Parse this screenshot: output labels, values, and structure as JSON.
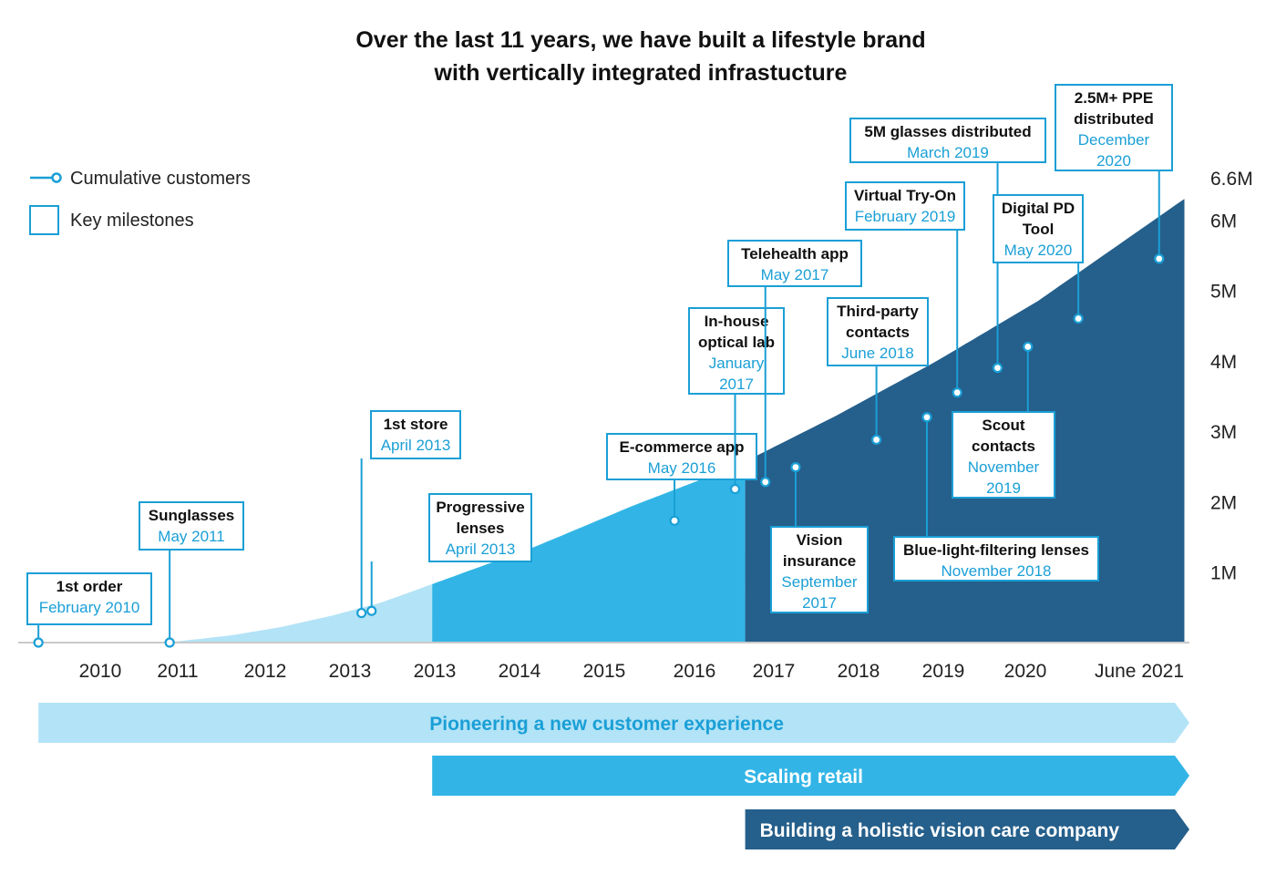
{
  "chart_data": {
    "type": "area",
    "title_lines": [
      "Over the last 11 years, we have built a lifestyle brand",
      "with vertically integrated infrastucture"
    ],
    "legend": [
      {
        "label": "Cumulative customers",
        "kind": "line-with-marker",
        "color": "#1a9fd6"
      },
      {
        "label": "Key milestones",
        "kind": "box",
        "color": "#1a9fd6"
      }
    ],
    "x_ticks": [
      "2010",
      "2011",
      "2012",
      "2013",
      "2013",
      "2014",
      "2015",
      "2016",
      "2017",
      "2018",
      "2019",
      "2020",
      "June 2021"
    ],
    "x_range": [
      2009.9,
      2021.5
    ],
    "y_ticks": [
      "1M",
      "2M",
      "3M",
      "4M",
      "5M",
      "6M",
      "6.6M"
    ],
    "y_tick_values": [
      1,
      2,
      3,
      4,
      5,
      6,
      6.6
    ],
    "y_range": [
      0,
      6.6
    ],
    "series": [
      {
        "name": "Cumulative customers",
        "points": [
          [
            2010.2,
            0
          ],
          [
            2011.1,
            0
          ],
          [
            2011.5,
            0.02
          ],
          [
            2012.0,
            0.1
          ],
          [
            2012.5,
            0.22
          ],
          [
            2013.0,
            0.38
          ],
          [
            2013.5,
            0.57
          ],
          [
            2014.0,
            0.83
          ],
          [
            2015.0,
            1.35
          ],
          [
            2016.0,
            1.95
          ],
          [
            2017.0,
            2.5
          ],
          [
            2018.0,
            3.22
          ],
          [
            2019.0,
            4.0
          ],
          [
            2020.0,
            4.85
          ],
          [
            2021.0,
            5.85
          ],
          [
            2021.45,
            6.3
          ]
        ]
      }
    ],
    "area_bands": [
      {
        "from": 2011.1,
        "to": 2014.0,
        "color": "#b3e3f6"
      },
      {
        "from": 2014.0,
        "to": 2017.1,
        "color": "#32b5e6"
      },
      {
        "from": 2017.1,
        "to": 2021.45,
        "color": "#255f8b"
      }
    ],
    "milestones": [
      {
        "title": [
          "1st order"
        ],
        "date": [
          "February 2010"
        ],
        "x": 2010.1,
        "y": 0,
        "box_side": "above"
      },
      {
        "title": [
          "Sunglasses"
        ],
        "date": [
          "May 2011"
        ],
        "x": 2011.4,
        "y": 0,
        "box_side": "above"
      },
      {
        "title": [
          "1st store"
        ],
        "date": [
          "April 2013"
        ],
        "x": 2013.3,
        "y": 0.42,
        "box_side": "above"
      },
      {
        "title": [
          "Progressive",
          "lenses"
        ],
        "date": [
          "April 2013"
        ],
        "x": 2013.4,
        "y": 0.45,
        "box_side": "above"
      },
      {
        "title": [
          "E-commerce app"
        ],
        "date": [
          "May 2016"
        ],
        "x": 2016.4,
        "y": 1.73,
        "box_side": "above"
      },
      {
        "title": [
          "In-house",
          "optical lab"
        ],
        "date": [
          "January",
          "2017"
        ],
        "x": 2017.0,
        "y": 2.18,
        "box_side": "above"
      },
      {
        "title": [
          "Telehealth app"
        ],
        "date": [
          "May 2017"
        ],
        "x": 2017.3,
        "y": 2.28,
        "box_side": "above"
      },
      {
        "title": [
          "Vision",
          "insurance"
        ],
        "date": [
          "September",
          "2017"
        ],
        "x": 2017.6,
        "y": 2.49,
        "box_side": "below"
      },
      {
        "title": [
          "Third-party",
          "contacts"
        ],
        "date": [
          "June 2018"
        ],
        "x": 2018.4,
        "y": 2.88,
        "box_side": "above"
      },
      {
        "title": [
          "Blue-light-filtering lenses"
        ],
        "date": [
          "November 2018"
        ],
        "x": 2018.9,
        "y": 3.2,
        "box_side": "below"
      },
      {
        "title": [
          "Virtual Try-On"
        ],
        "date": [
          "February 2019"
        ],
        "x": 2019.2,
        "y": 3.55,
        "box_side": "above"
      },
      {
        "title": [
          "5M glasses distributed"
        ],
        "date": [
          "March 2019"
        ],
        "x": 2019.6,
        "y": 3.9,
        "box_side": "above"
      },
      {
        "title": [
          "Scout",
          "contacts"
        ],
        "date": [
          "November",
          "2019"
        ],
        "x": 2019.9,
        "y": 4.2,
        "box_side": "below"
      },
      {
        "title": [
          "Digital PD",
          "Tool"
        ],
        "date": [
          "May 2020"
        ],
        "x": 2020.4,
        "y": 4.6,
        "box_side": "above"
      },
      {
        "title": [
          "2.5M+ PPE",
          "distributed"
        ],
        "date": [
          "December",
          "2020"
        ],
        "x": 2021.2,
        "y": 5.45,
        "box_side": "above"
      }
    ],
    "phases": [
      {
        "label": "Pioneering a new customer experience",
        "from": 2010.1,
        "to": 2021.5,
        "color": "#b3e3f6",
        "text_color": "#1a9fd6"
      },
      {
        "label": "Scaling retail",
        "from": 2014.0,
        "to": 2021.5,
        "color": "#32b5e6",
        "text_color": "#ffffff"
      },
      {
        "label": "Building a holistic vision care company",
        "from": 2017.1,
        "to": 2021.5,
        "color": "#255f8b",
        "text_color": "#ffffff"
      }
    ],
    "grid": false,
    "legend_position": "top-left"
  }
}
